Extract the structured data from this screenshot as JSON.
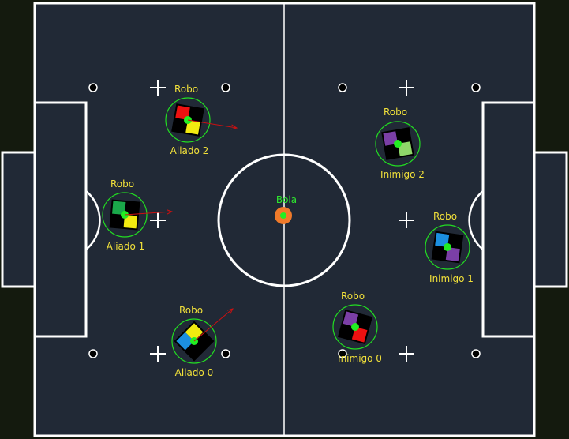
{
  "colors": {
    "background": "#141a0e",
    "field": "#212936",
    "lines": "#ffffff",
    "label": "#f2e13a",
    "robot_ring": "#22dd22",
    "center_dot": "#22ee22",
    "velocity_arrow": "#cc1111",
    "ball": "#f07a2a"
  },
  "ball": {
    "label": "Bola"
  },
  "robots": [
    {
      "id": "aliado-2",
      "top_label": "Robo",
      "bottom_label": "Aliado 2",
      "patch_colors": [
        "red",
        "yellow"
      ]
    },
    {
      "id": "aliado-1",
      "top_label": "Robo",
      "bottom_label": "Aliado 1",
      "patch_colors": [
        "green",
        "yellow"
      ]
    },
    {
      "id": "aliado-0",
      "top_label": "Robo",
      "bottom_label": "Aliado 0",
      "patch_colors": [
        "blue",
        "yellow"
      ]
    },
    {
      "id": "inimigo-2",
      "top_label": "Robo",
      "bottom_label": "Inimigo 2",
      "patch_colors": [
        "purple",
        "light-green"
      ]
    },
    {
      "id": "inimigo-1",
      "top_label": "Robo",
      "bottom_label": "Inimigo 1",
      "patch_colors": [
        "blue",
        "purple"
      ]
    },
    {
      "id": "inimigo-0",
      "top_label": "Robo",
      "bottom_label": "Inimigo 0",
      "patch_colors": [
        "purple",
        "red"
      ]
    }
  ]
}
